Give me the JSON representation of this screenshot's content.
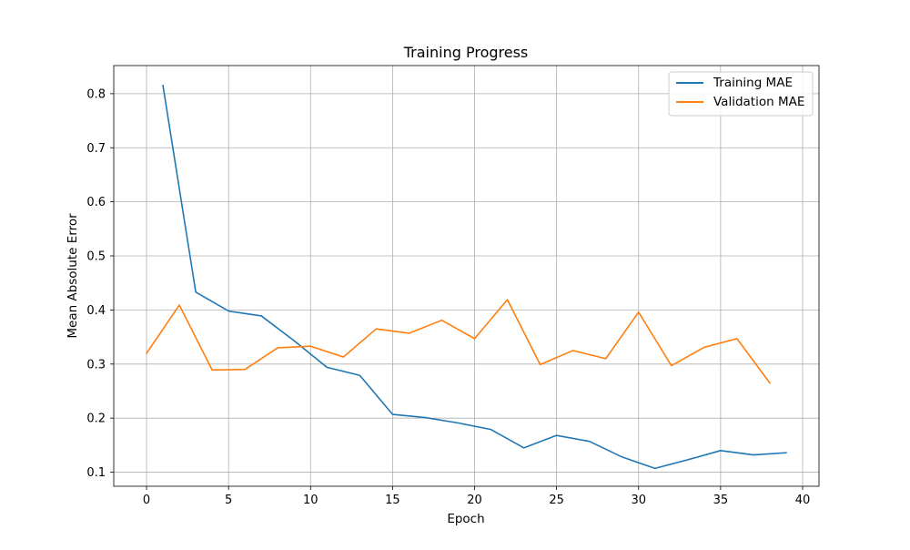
{
  "chart_data": {
    "type": "line",
    "title": "Training Progress",
    "xlabel": "Epoch",
    "ylabel": "Mean Absolute Error",
    "xlim": [
      -2,
      41
    ],
    "ylim": [
      0.074,
      0.852
    ],
    "xticks": [
      0,
      5,
      10,
      15,
      20,
      25,
      30,
      35,
      40
    ],
    "yticks": [
      0.1,
      0.2,
      0.3,
      0.4,
      0.5,
      0.6,
      0.7,
      0.8
    ],
    "ytick_labels": [
      "0.1",
      "0.2",
      "0.3",
      "0.4",
      "0.5",
      "0.6",
      "0.7",
      "0.8"
    ],
    "grid": true,
    "legend_position": "top-right",
    "series": [
      {
        "name": "Training MAE",
        "color": "#1f77b4",
        "x": [
          1,
          3,
          5,
          7,
          9,
          11,
          13,
          15,
          17,
          19,
          21,
          23,
          25,
          27,
          29,
          31,
          33,
          35,
          37,
          39
        ],
        "values": [
          0.815,
          0.433,
          0.398,
          0.389,
          0.343,
          0.294,
          0.279,
          0.207,
          0.201,
          0.191,
          0.179,
          0.145,
          0.168,
          0.157,
          0.128,
          0.107,
          0.123,
          0.14,
          0.132,
          0.136
        ]
      },
      {
        "name": "Validation MAE",
        "color": "#ff7f0e",
        "x": [
          0,
          2,
          4,
          6,
          8,
          10,
          12,
          14,
          16,
          18,
          20,
          22,
          24,
          26,
          28,
          30,
          32,
          34,
          36,
          38
        ],
        "values": [
          0.32,
          0.409,
          0.289,
          0.29,
          0.33,
          0.333,
          0.313,
          0.365,
          0.357,
          0.381,
          0.347,
          0.419,
          0.299,
          0.325,
          0.31,
          0.396,
          0.297,
          0.331,
          0.347,
          0.265
        ]
      }
    ]
  }
}
